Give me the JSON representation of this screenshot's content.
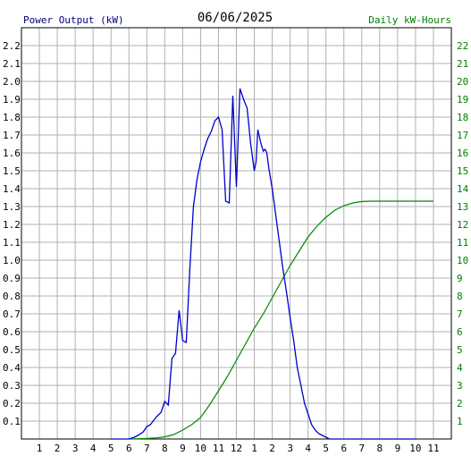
{
  "chart_data": {
    "type": "line",
    "title": "06/06/2025",
    "left_axis_label": "Power Output (kW)",
    "right_axis_label": "Daily kW-Hours",
    "x_tick_labels": [
      "1",
      "2",
      "3",
      "4",
      "5",
      "6",
      "7",
      "8",
      "9",
      "10",
      "11",
      "12",
      "1",
      "2",
      "3",
      "4",
      "5",
      "6",
      "7",
      "8",
      "9",
      "10",
      "11"
    ],
    "x_range_hours": [
      0,
      24
    ],
    "y_left_range": [
      0,
      2.3
    ],
    "y_left_ticks": [
      "0.1",
      "0.2",
      "0.3",
      "0.4",
      "0.5",
      "0.6",
      "0.7",
      "0.8",
      "0.9",
      "1.0",
      "1.1",
      "1.2",
      "1.3",
      "1.4",
      "1.5",
      "1.6",
      "1.7",
      "1.8",
      "1.9",
      "2.0",
      "2.1",
      "2.2"
    ],
    "y_right_range": [
      0,
      23
    ],
    "y_right_ticks": [
      "1",
      "2",
      "3",
      "4",
      "5",
      "6",
      "7",
      "8",
      "9",
      "10",
      "11",
      "12",
      "13",
      "14",
      "15",
      "16",
      "17",
      "18",
      "19",
      "20",
      "21",
      "22"
    ],
    "grid": true,
    "colors": {
      "power": "#0000cc",
      "energy": "#008800",
      "grid": "#b0b0b0",
      "axis": "#000000",
      "left_label": "#000080",
      "right_label": "#008000"
    },
    "series": [
      {
        "name": "Power Output (kW)",
        "axis": "left",
        "x": [
          5.0,
          6.0,
          6.3,
          6.5,
          6.8,
          7.0,
          7.2,
          7.5,
          7.8,
          8.0,
          8.2,
          8.4,
          8.6,
          8.8,
          9.0,
          9.2,
          9.4,
          9.6,
          9.8,
          10.0,
          10.2,
          10.4,
          10.6,
          10.8,
          11.0,
          11.2,
          11.4,
          11.6,
          11.8,
          12.0,
          12.2,
          12.3,
          12.4,
          12.6,
          12.8,
          13.0,
          13.1,
          13.2,
          13.35,
          13.5,
          13.6,
          13.7,
          13.8,
          14.0,
          14.2,
          14.4,
          14.6,
          14.8,
          15.0,
          15.2,
          15.4,
          15.6,
          15.8,
          16.0,
          16.2,
          16.4,
          16.6,
          16.8,
          17.0,
          17.2,
          17.4,
          17.6,
          17.8,
          18.0,
          18.2,
          18.4,
          18.6,
          18.8,
          19.0,
          19.2,
          19.5,
          19.8,
          20.0,
          20.5,
          21.0,
          22.0
        ],
        "values": [
          0.0,
          0.0,
          0.01,
          0.02,
          0.04,
          0.07,
          0.08,
          0.12,
          0.15,
          0.21,
          0.19,
          0.45,
          0.48,
          0.72,
          0.55,
          0.54,
          0.95,
          1.3,
          1.45,
          1.55,
          1.62,
          1.68,
          1.72,
          1.78,
          1.8,
          1.73,
          1.33,
          1.32,
          1.92,
          1.41,
          1.96,
          1.93,
          1.9,
          1.85,
          1.65,
          1.5,
          1.55,
          1.73,
          1.66,
          1.61,
          1.62,
          1.6,
          1.52,
          1.4,
          1.25,
          1.1,
          0.95,
          0.82,
          0.68,
          0.55,
          0.4,
          0.3,
          0.2,
          0.14,
          0.08,
          0.05,
          0.03,
          0.02,
          0.01,
          0.0,
          0.0,
          0.0,
          0.0,
          0.0,
          0.0,
          0.0,
          0.0,
          0.0,
          0.0,
          0.0,
          0.0,
          0.0,
          0.0,
          0.0,
          0.0,
          0.0
        ]
      },
      {
        "name": "Daily kW-Hours",
        "axis": "right",
        "x": [
          6.0,
          7.0,
          7.5,
          8.0,
          8.5,
          9.0,
          9.5,
          10.0,
          10.5,
          11.0,
          11.5,
          12.0,
          12.5,
          13.0,
          13.5,
          14.0,
          14.5,
          15.0,
          15.5,
          16.0,
          16.5,
          17.0,
          17.5,
          18.0,
          18.5,
          19.0,
          19.5,
          20.0,
          21.0,
          22.0,
          23.0
        ],
        "values": [
          0.0,
          0.03,
          0.06,
          0.12,
          0.25,
          0.5,
          0.8,
          1.2,
          1.9,
          2.7,
          3.5,
          4.4,
          5.3,
          6.2,
          7.0,
          7.9,
          8.8,
          9.7,
          10.5,
          11.3,
          11.9,
          12.4,
          12.8,
          13.05,
          13.2,
          13.28,
          13.3,
          13.3,
          13.3,
          13.3,
          13.3
        ]
      }
    ]
  }
}
